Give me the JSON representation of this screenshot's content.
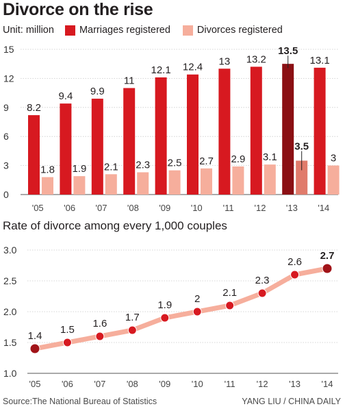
{
  "title": "Divorce on the rise",
  "unit_label": "Unit: million",
  "source": "Source:The National Bureau of Statistics",
  "credit": "YANG LIU / CHINA DAILY",
  "colors": {
    "marriages": "#d71920",
    "divorces": "#f6ae9c",
    "highlight_marriages": "#8b1014",
    "highlight_divorces": "#e07b6b",
    "line": "#f6ae9c",
    "point": "#d71920",
    "last_point": "#a11318",
    "grid": "#c9c9c9"
  },
  "chart_data": [
    {
      "type": "bar",
      "title": "Divorce on the rise",
      "ylabel": "Unit: million",
      "categories": [
        "'05",
        "'06",
        "'07",
        "'08",
        "'09",
        "'10",
        "'11",
        "'12",
        "'13",
        "'14"
      ],
      "series": [
        {
          "name": "Marriages registered",
          "values": [
            8.2,
            9.4,
            9.9,
            11,
            12.1,
            12.4,
            13,
            13.2,
            13.5,
            13.1
          ],
          "labels": [
            "8.2",
            "9.4",
            "9.9",
            "11",
            "12.1",
            "12.4",
            "13",
            "13.2",
            "13.5",
            "13.1"
          ]
        },
        {
          "name": "Divorces registered",
          "values": [
            1.8,
            1.9,
            2.1,
            2.3,
            2.5,
            2.7,
            2.9,
            3.1,
            3.5,
            3
          ],
          "labels": [
            "1.8",
            "1.9",
            "2.1",
            "2.3",
            "2.5",
            "2.7",
            "2.9",
            "3.1",
            "3.5",
            "3"
          ]
        }
      ],
      "highlight_index": 8,
      "ylim": [
        0,
        15
      ],
      "yticks": [
        0,
        3,
        6,
        9,
        12,
        15
      ],
      "ytick_labels": [
        "0",
        "3",
        "6",
        "9",
        "12",
        "15"
      ],
      "grid": true,
      "legend": "top"
    },
    {
      "type": "line",
      "title": "Rate of divorce among every 1,000 couples",
      "categories": [
        "'05",
        "'06",
        "'07",
        "'08",
        "'09",
        "'10",
        "'11",
        "'12",
        "'13",
        "'14"
      ],
      "series": [
        {
          "values": [
            1.4,
            1.5,
            1.6,
            1.7,
            1.9,
            2,
            2.1,
            2.3,
            2.6,
            2.7
          ],
          "labels": [
            "1.4",
            "1.5",
            "1.6",
            "1.7",
            "1.9",
            "2",
            "2.1",
            "2.3",
            "2.6",
            "2.7"
          ]
        }
      ],
      "highlight_index": 9,
      "ylim": [
        1.0,
        3.0
      ],
      "yticks": [
        1.0,
        1.5,
        2.0,
        2.5,
        3.0
      ],
      "ytick_labels": [
        "1.0",
        "1.5",
        "2.0",
        "2.5",
        "3.0"
      ],
      "grid": true
    }
  ]
}
